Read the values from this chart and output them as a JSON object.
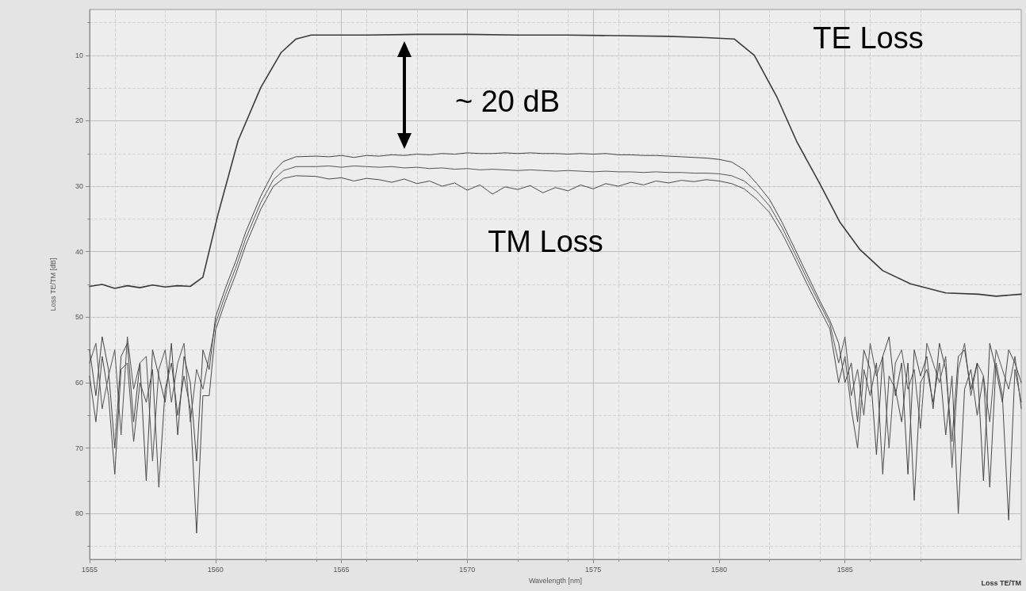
{
  "chart_data": {
    "type": "line",
    "xlabel": "Wavelength [nm]",
    "ylabel": "Loss TE/TM [dB]",
    "annotations": [
      "TE Loss",
      "~ 20 dB",
      "TM Loss",
      "Loss TE/TM"
    ],
    "xlim": [
      1555,
      1592
    ],
    "xticks": [
      1555,
      1560,
      1565,
      1570,
      1575,
      1580,
      1585
    ],
    "ylim": [
      87,
      3
    ],
    "yticks": [
      10,
      20,
      30,
      40,
      50,
      60,
      70,
      80
    ],
    "grid": true,
    "x": [
      1555,
      1555.25,
      1555.5,
      1555.75,
      1556,
      1556.25,
      1556.5,
      1556.75,
      1557,
      1557.25,
      1557.5,
      1557.75,
      1558,
      1558.25,
      1558.5,
      1558.75,
      1559,
      1559.25,
      1559.5,
      1559.75,
      1560,
      1560.4,
      1560.8,
      1561.2,
      1561.8,
      1562.3,
      1562.7,
      1563.2,
      1564,
      1564.5,
      1565,
      1565.5,
      1566,
      1566.5,
      1567,
      1567.5,
      1568,
      1568.5,
      1569,
      1569.5,
      1570,
      1570.5,
      1571,
      1571.5,
      1572,
      1572.5,
      1573,
      1573.5,
      1574,
      1574.5,
      1575,
      1575.5,
      1576,
      1576.5,
      1577,
      1577.5,
      1578,
      1578.5,
      1579,
      1579.5,
      1580,
      1580.5,
      1581,
      1581.5,
      1582,
      1582.5,
      1583,
      1583.5,
      1584,
      1584.4,
      1584.75,
      1585,
      1585.25,
      1585.5,
      1585.75,
      1586,
      1586.25,
      1586.5,
      1586.75,
      1587,
      1587.25,
      1587.5,
      1587.75,
      1588,
      1588.25,
      1588.5,
      1588.75,
      1589,
      1589.25,
      1589.5,
      1589.75,
      1590,
      1590.25,
      1590.5,
      1590.75,
      1591,
      1591.25,
      1591.5,
      1591.75,
      1592
    ],
    "series": [
      {
        "color": "#3a3a3a",
        "x": [
          1555,
          1555.5,
          1556,
          1556.5,
          1557,
          1557.5,
          1558,
          1558.5,
          1559,
          1559.5,
          1560.1,
          1560.9,
          1561.8,
          1562.6,
          1563.2,
          1563.8,
          1566,
          1568,
          1570,
          1572,
          1574,
          1576,
          1578,
          1579.5,
          1580.6,
          1581.4,
          1582.3,
          1583.1,
          1584,
          1584.8,
          1585.6,
          1586.5,
          1587.6,
          1589,
          1590.3,
          1591,
          1592
        ],
        "values": [
          45.3,
          45,
          45.6,
          45.2,
          45.5,
          45.1,
          45.4,
          45.2,
          45.3,
          43.9,
          34.3,
          23,
          14.9,
          9.6,
          7.5,
          6.9,
          6.9,
          6.8,
          6.8,
          6.9,
          6.9,
          7,
          7.1,
          7.3,
          7.5,
          10,
          16.4,
          23.3,
          29.6,
          35.5,
          39.7,
          42.9,
          44.9,
          46.3,
          46.5,
          46.8,
          46.5
        ]
      },
      {
        "color": "#444444",
        "values": [
          55,
          62,
          53,
          58,
          70,
          56,
          54,
          66,
          57,
          75,
          55,
          59,
          63,
          54,
          68,
          56,
          60,
          72,
          55,
          58,
          50,
          45.5,
          41.5,
          37,
          31.5,
          27.8,
          26.2,
          25.5,
          25.4,
          25.5,
          25.3,
          25.6,
          25.3,
          25.4,
          25.2,
          25.3,
          25.1,
          25.2,
          25,
          25.1,
          24.9,
          25,
          25,
          24.9,
          25,
          24.9,
          25,
          25,
          25.1,
          25,
          25.1,
          25,
          25.2,
          25.2,
          25.3,
          25.3,
          25.4,
          25.5,
          25.6,
          25.7,
          25.9,
          26.3,
          27.5,
          29.6,
          32,
          35.5,
          39.5,
          43.5,
          47.5,
          50.5,
          54,
          60,
          57,
          66,
          55,
          58,
          71,
          56,
          53,
          62,
          57,
          74,
          55,
          59,
          56,
          64,
          54,
          58,
          69,
          56,
          55,
          61,
          57,
          75,
          54,
          58,
          63,
          55,
          57,
          60
        ]
      },
      {
        "color": "#555555",
        "values": [
          57,
          54,
          64,
          59,
          55,
          68,
          53,
          61,
          57,
          56,
          72,
          58,
          55,
          63,
          57,
          54,
          66,
          58,
          61,
          56,
          51,
          46.5,
          42.5,
          38,
          32.5,
          29,
          27.6,
          27,
          27,
          26.9,
          27.1,
          26.9,
          27,
          27.1,
          27,
          27.2,
          27.1,
          27.3,
          27.2,
          27.4,
          27.3,
          27.5,
          27.4,
          27.5,
          27.6,
          27.5,
          27.6,
          27.7,
          27.6,
          27.7,
          27.8,
          27.7,
          27.8,
          27.8,
          27.9,
          27.8,
          27.9,
          27.9,
          28,
          28,
          28.1,
          28.4,
          29.2,
          30.8,
          33,
          36.3,
          40.2,
          44.2,
          48,
          51,
          57,
          53,
          62,
          58,
          65,
          54,
          59,
          56,
          70,
          57,
          55,
          61,
          58,
          67,
          54,
          57,
          60,
          56,
          73,
          58,
          54,
          62,
          57,
          59,
          66,
          55,
          58,
          61,
          56,
          64
        ]
      },
      {
        "color": "#4a4a4a",
        "values": [
          59,
          66,
          56,
          62,
          74,
          58,
          57,
          69,
          60,
          63,
          58,
          76,
          61,
          57,
          65,
          59,
          64,
          83,
          62,
          62,
          52,
          47.5,
          43.5,
          39,
          33.5,
          30,
          28.8,
          28.4,
          28.5,
          28.9,
          28.7,
          29.2,
          28.8,
          29,
          29.4,
          28.9,
          29.6,
          29.2,
          30,
          29.5,
          30.6,
          29.8,
          31.2,
          30.1,
          30.5,
          29.9,
          31,
          30.2,
          30.7,
          29.8,
          30.4,
          29.6,
          30,
          29.4,
          29.8,
          29.2,
          29.5,
          29.1,
          29.3,
          29,
          29.2,
          29.6,
          30.4,
          32,
          34,
          37.2,
          41,
          45,
          48.8,
          51.8,
          60,
          56,
          64,
          70,
          58,
          62,
          57,
          74,
          59,
          61,
          66,
          57,
          78,
          60,
          58,
          63,
          57,
          68,
          59,
          80,
          61,
          58,
          65,
          59,
          76,
          57,
          62,
          81,
          58,
          63
        ]
      }
    ]
  }
}
